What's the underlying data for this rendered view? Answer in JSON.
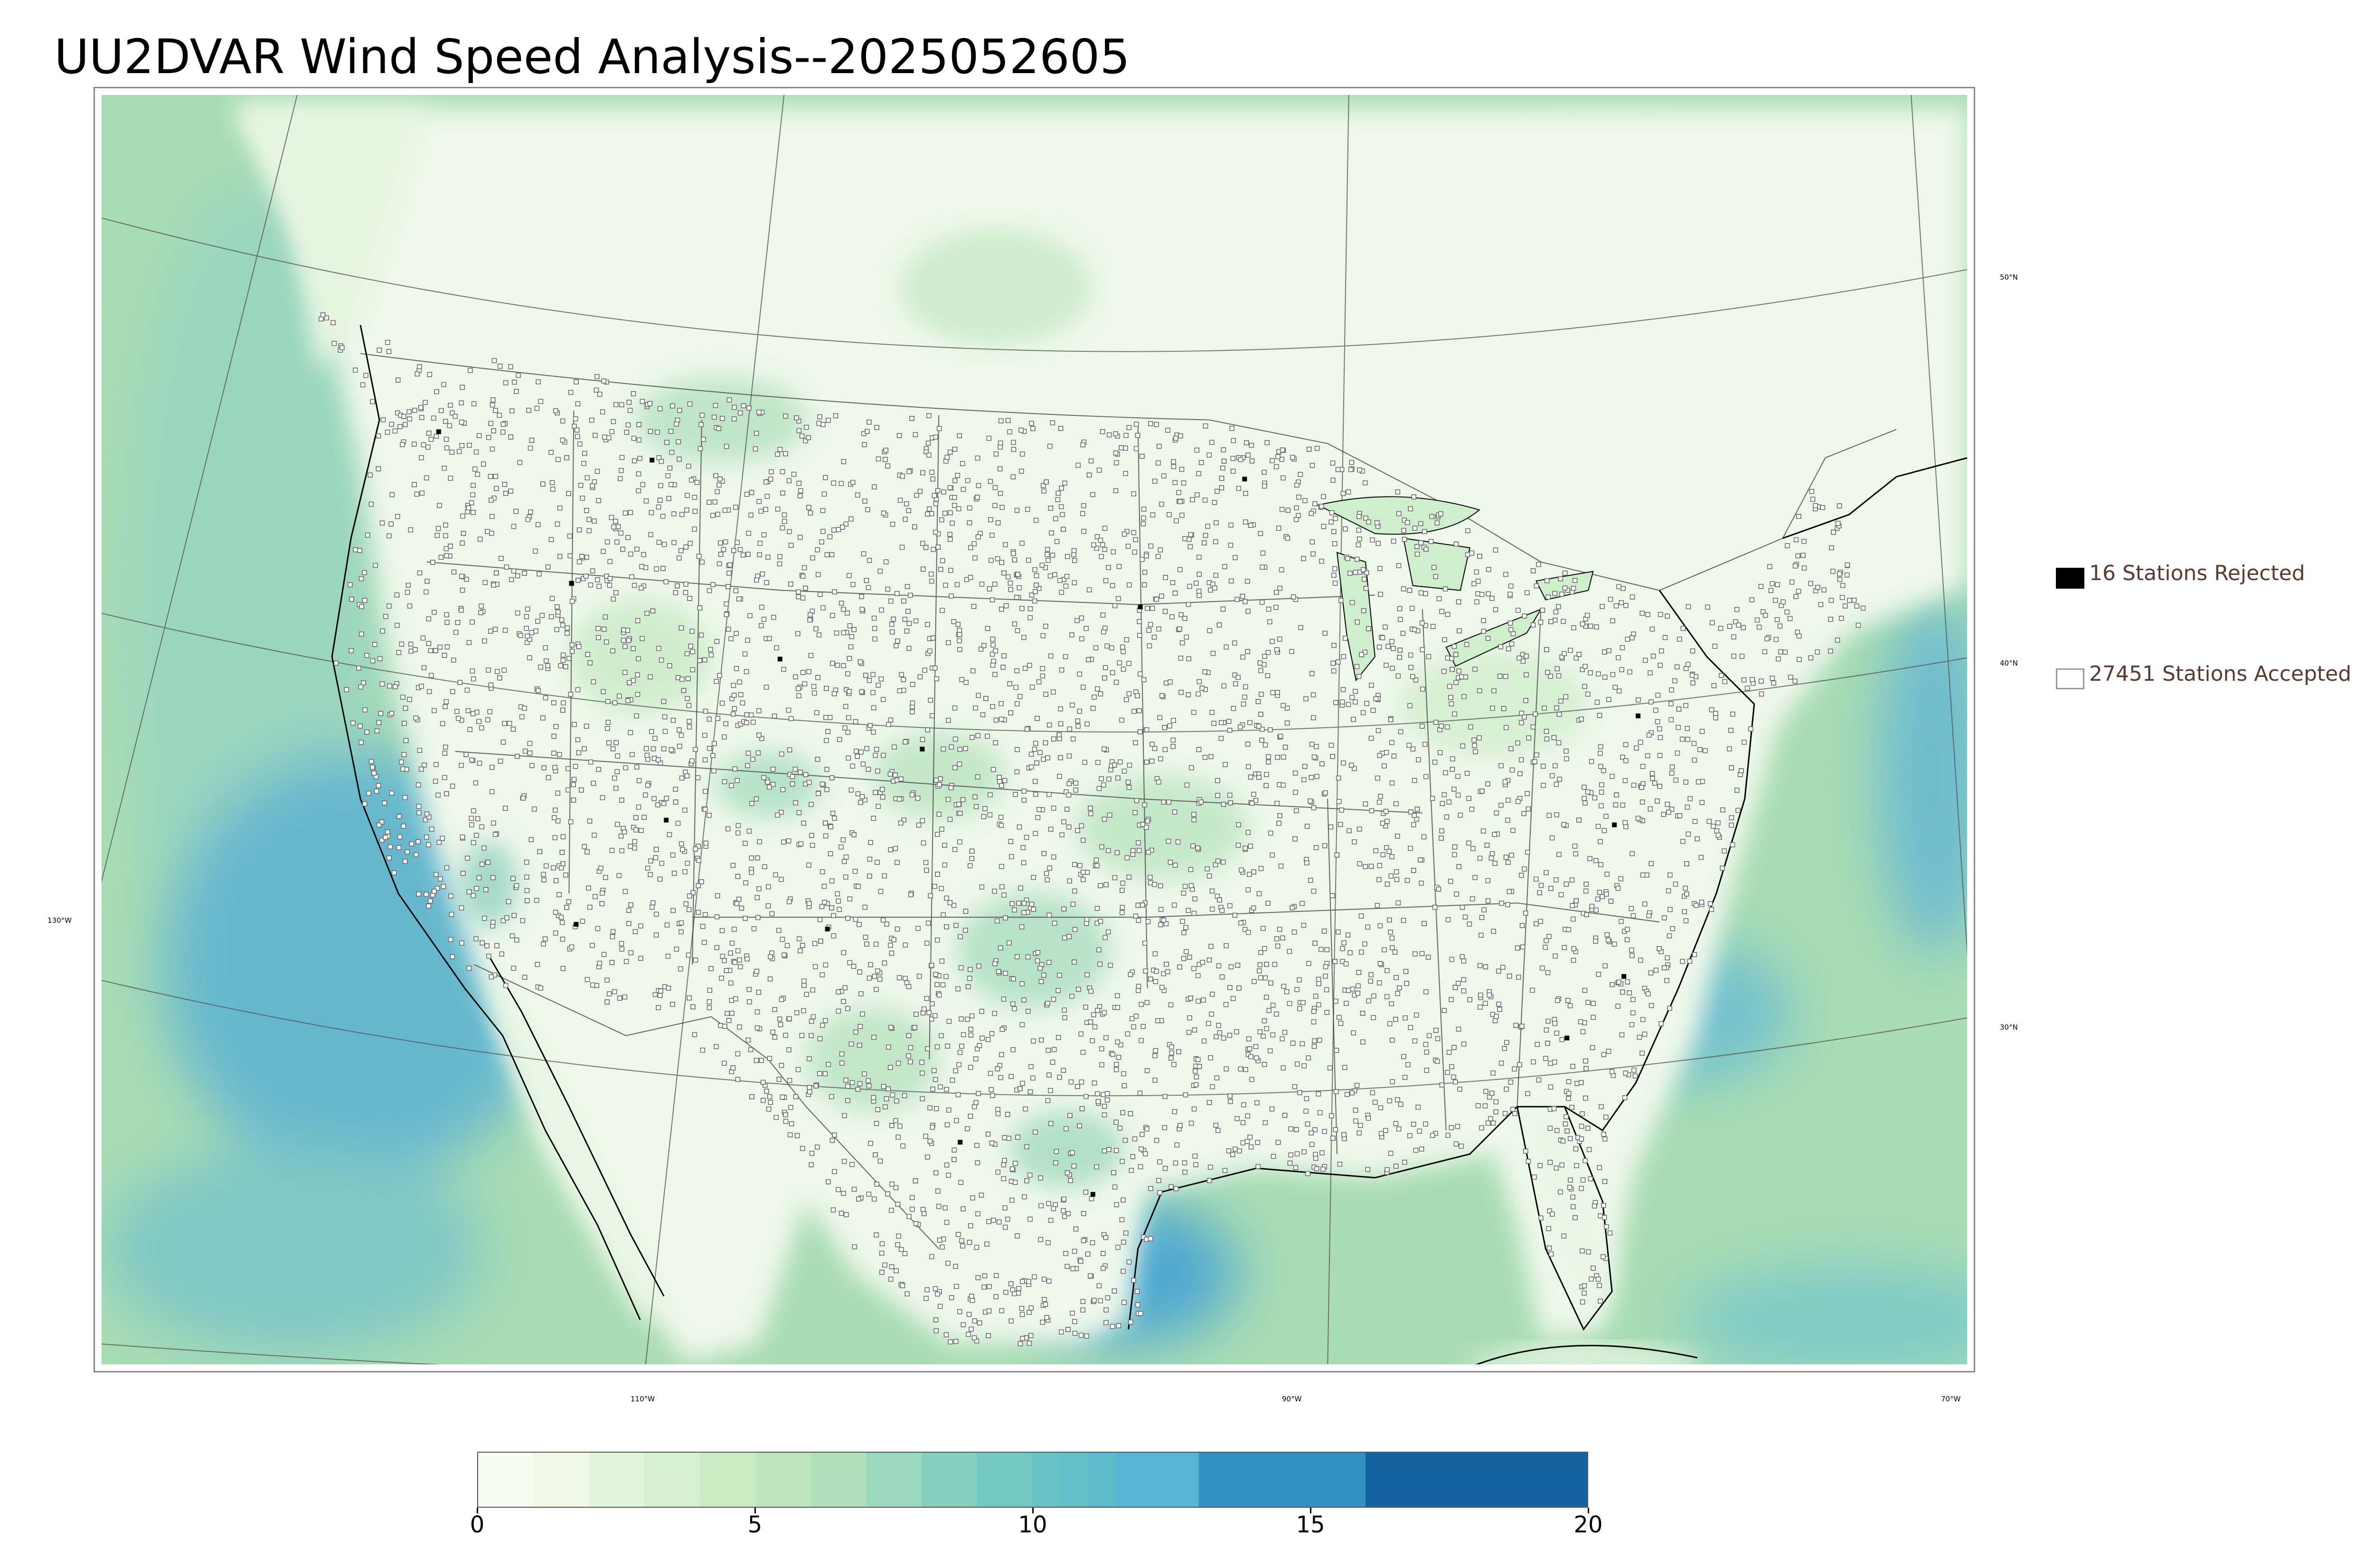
{
  "title": "UU2DVAR Wind Speed Analysis--2025052605",
  "map": {
    "longitude_labels": [
      {
        "id": "lon-130",
        "text": "130°W"
      },
      {
        "id": "lon-110",
        "text": "110°W"
      },
      {
        "id": "lon-90",
        "text": "90°W"
      },
      {
        "id": "lon-70",
        "text": "70°W"
      }
    ],
    "latitude_labels": [
      {
        "id": "lat-50",
        "text": "50°N"
      },
      {
        "id": "lat-40",
        "text": "40°N"
      },
      {
        "id": "lat-30",
        "text": "30°N"
      }
    ],
    "colors": {
      "land_base": "#ecf7e6",
      "ocean_base": "#a9dcb4",
      "coastline": "#000000",
      "border": "#333333",
      "graticule": "#555555",
      "station_accepted_edge": "#6a6a6a",
      "station_rejected_fill": "#000000"
    }
  },
  "legend": {
    "rejected": {
      "label": "16 Stations Rejected",
      "count": 16,
      "swatch": "#000000"
    },
    "accepted": {
      "label": "27451 Stations Accepted",
      "count": 27451,
      "swatch": "#ffffff"
    }
  },
  "colorbar": {
    "min": 0,
    "max": 20,
    "ticks": [
      "0",
      "5",
      "10",
      "15",
      "20"
    ],
    "segments": [
      {
        "from": 0,
        "to": 1,
        "color": "#f7fcf0"
      },
      {
        "from": 1,
        "to": 2,
        "color": "#eef9e8"
      },
      {
        "from": 2,
        "to": 3,
        "color": "#e2f4dc"
      },
      {
        "from": 3,
        "to": 4,
        "color": "#d6efd0"
      },
      {
        "from": 4,
        "to": 5,
        "color": "#cbebc5"
      },
      {
        "from": 5,
        "to": 6,
        "color": "#bde5be"
      },
      {
        "from": 6,
        "to": 7,
        "color": "#aedfba"
      },
      {
        "from": 7,
        "to": 8,
        "color": "#9bd8bc"
      },
      {
        "from": 8,
        "to": 9,
        "color": "#85cfc0"
      },
      {
        "from": 9,
        "to": 10,
        "color": "#74c8c4"
      },
      {
        "from": 10,
        "to": 10.5,
        "color": "#69c2c8"
      },
      {
        "from": 10.5,
        "to": 11,
        "color": "#63bfca"
      },
      {
        "from": 11,
        "to": 11.5,
        "color": "#5dbbcb"
      },
      {
        "from": 11.5,
        "to": 13,
        "color": "#58b4d3"
      },
      {
        "from": 13,
        "to": 16,
        "color": "#3192c1"
      },
      {
        "from": 16,
        "to": 20,
        "color": "#1562a0"
      }
    ]
  }
}
